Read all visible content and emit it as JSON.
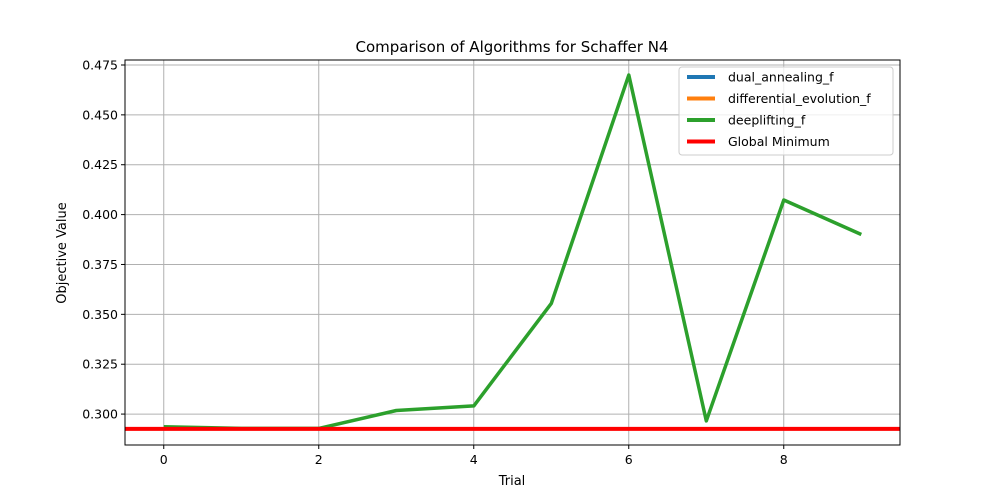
{
  "chart_data": {
    "type": "line",
    "title": "Comparison of Algorithms for Schaffer N4",
    "xlabel": "Trial",
    "ylabel": "Objective Value",
    "xlim": [
      -0.5,
      9.5
    ],
    "ylim": [
      0.2845,
      0.4775
    ],
    "x_ticks": [
      0,
      2,
      4,
      6,
      8
    ],
    "y_ticks": [
      0.3,
      0.325,
      0.35,
      0.375,
      0.4,
      0.425,
      0.45,
      0.475
    ],
    "x_tick_labels": [
      "0",
      "2",
      "4",
      "6",
      "8"
    ],
    "y_tick_labels": [
      "0.300",
      "0.325",
      "0.350",
      "0.375",
      "0.400",
      "0.425",
      "0.450",
      "0.475"
    ],
    "grid": true,
    "legend_position": "top-right",
    "x": [
      0,
      1,
      2,
      3,
      4,
      5,
      6,
      7,
      8,
      9
    ],
    "series": [
      {
        "name": "dual_annealing_f",
        "color": "#1f77b4",
        "values": [
          0.2926,
          0.2926,
          0.2926,
          0.2926,
          0.2926,
          0.2926,
          0.2926,
          0.2926,
          0.2926,
          0.2926
        ]
      },
      {
        "name": "differential_evolution_f",
        "color": "#ff7f0e",
        "values": [
          0.2926,
          0.2926,
          0.2926,
          0.2926,
          0.2926,
          0.2926,
          0.2926,
          0.2926,
          0.2926,
          0.2926
        ]
      },
      {
        "name": "deeplifting_f",
        "color": "#2ca02c",
        "values": [
          0.2936,
          0.2928,
          0.2928,
          0.3018,
          0.3041,
          0.3555,
          0.47,
          0.2966,
          0.4073,
          0.39
        ]
      }
    ],
    "reference_line": {
      "name": "Global Minimum",
      "color": "#ff0000",
      "value": 0.29258
    }
  }
}
